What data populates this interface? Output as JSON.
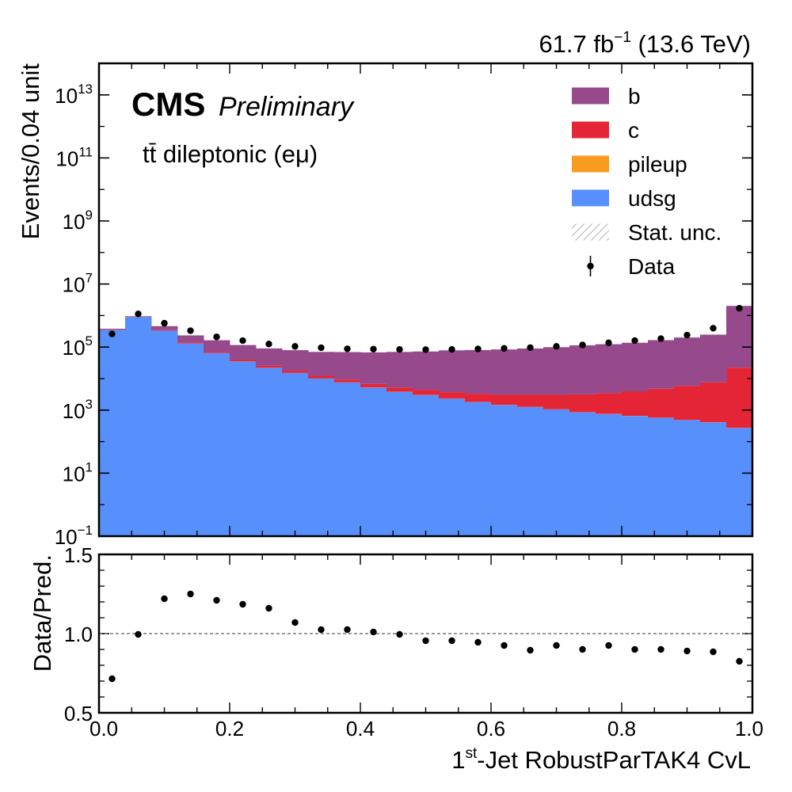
{
  "header": {
    "lumi_value": "61.7 fb",
    "lumi_sup": "−1",
    "lumi_energy": " (13.6 TeV)"
  },
  "labels": {
    "cms": "CMS",
    "preliminary": "Preliminary",
    "channel": "tt̄ dileptonic (eμ)"
  },
  "top_yaxis_label": "Events/0.04 unit",
  "bottom_yaxis_label": "Data/Pred.",
  "xaxis_label": {
    "prefix": "1",
    "sup": "st",
    "main": "-Jet RobustParTAK4 CvL"
  },
  "colors": {
    "b": "#964A8B",
    "c": "#E42536",
    "pileup": "#F89C20",
    "udsg": "#5790FC",
    "data": "#000000",
    "unc_hatch": "#9c9c9c"
  },
  "chart_data": [
    {
      "type": "bar",
      "subtype": "stacked-histogram-with-data",
      "title": "",
      "xlabel": "1st-Jet RobustParTAK4 CvL",
      "ylabel": "Events/0.04 unit",
      "yscale": "log",
      "xlim": [
        0.0,
        1.0
      ],
      "ylim_log10": [
        -1,
        14
      ],
      "ytick_exponents": [
        -1,
        1,
        3,
        5,
        7,
        9,
        11,
        13
      ],
      "ytick_labels": [
        "10",
        "10",
        "10",
        "10",
        "10",
        "10",
        "10",
        "10"
      ],
      "ytick_sups": [
        "−1",
        "1",
        "3",
        "5",
        "7",
        "9",
        "11",
        "13"
      ],
      "bin_edges": [
        0.0,
        0.04,
        0.08,
        0.12,
        0.16,
        0.2,
        0.24,
        0.28,
        0.32,
        0.36,
        0.4,
        0.44,
        0.48,
        0.52,
        0.56,
        0.6,
        0.64,
        0.68,
        0.72,
        0.76,
        0.8,
        0.84,
        0.88,
        0.92,
        0.96,
        1.0
      ],
      "legend_position": "top-right",
      "legend": [
        {
          "key": "b",
          "label": "b",
          "kind": "fill"
        },
        {
          "key": "c",
          "label": "c",
          "kind": "fill"
        },
        {
          "key": "pileup",
          "label": "pileup",
          "kind": "fill"
        },
        {
          "key": "udsg",
          "label": "udsg",
          "kind": "fill"
        },
        {
          "key": "unc",
          "label": "Stat. unc.",
          "kind": "hatch"
        },
        {
          "key": "data",
          "label": "Data",
          "kind": "marker"
        }
      ],
      "series": [
        {
          "key": "udsg",
          "name": "udsg",
          "values": [
            350000,
            900000,
            330000,
            130000,
            65000,
            35000,
            22000,
            15000,
            10000,
            7500,
            5200,
            3800,
            3000,
            2300,
            1800,
            1450,
            1250,
            1050,
            850,
            750,
            650,
            570,
            480,
            410,
            270
          ]
        },
        {
          "key": "pileup",
          "name": "pileup",
          "values": [
            500,
            1000,
            600,
            300,
            200,
            150,
            110,
            80,
            60,
            45,
            35,
            28,
            22,
            18,
            15,
            12,
            10,
            9,
            8,
            7,
            6,
            5,
            5,
            4,
            3
          ]
        },
        {
          "key": "c",
          "name": "c",
          "values": [
            10000,
            20000,
            15000,
            10000,
            6500,
            4800,
            3500,
            2700,
            2200,
            1800,
            1500,
            1400,
            1400,
            1400,
            1500,
            1600,
            1800,
            2000,
            2300,
            2700,
            3300,
            4200,
            5400,
            7200,
            22000
          ]
        },
        {
          "key": "b",
          "name": "b",
          "values": [
            20000,
            37000,
            115000,
            94000,
            93000,
            76000,
            65000,
            62000,
            58000,
            60000,
            61000,
            65000,
            68000,
            75000,
            77000,
            81000,
            87000,
            96000,
            110000,
            120000,
            133000,
            161000,
            195000,
            240000,
            2000000
          ]
        }
      ],
      "data_points": [
        {
          "x": 0.02,
          "y": 260000
        },
        {
          "x": 0.06,
          "y": 1130000
        },
        {
          "x": 0.1,
          "y": 570000
        },
        {
          "x": 0.14,
          "y": 330000
        },
        {
          "x": 0.18,
          "y": 210000
        },
        {
          "x": 0.22,
          "y": 160000
        },
        {
          "x": 0.26,
          "y": 125000
        },
        {
          "x": 0.3,
          "y": 105000
        },
        {
          "x": 0.34,
          "y": 95000
        },
        {
          "x": 0.38,
          "y": 88000
        },
        {
          "x": 0.42,
          "y": 86000
        },
        {
          "x": 0.46,
          "y": 84000
        },
        {
          "x": 0.5,
          "y": 83000
        },
        {
          "x": 0.54,
          "y": 84000
        },
        {
          "x": 0.58,
          "y": 87000
        },
        {
          "x": 0.62,
          "y": 91000
        },
        {
          "x": 0.66,
          "y": 96000
        },
        {
          "x": 0.7,
          "y": 105000
        },
        {
          "x": 0.74,
          "y": 116000
        },
        {
          "x": 0.78,
          "y": 136000
        },
        {
          "x": 0.82,
          "y": 160000
        },
        {
          "x": 0.86,
          "y": 185000
        },
        {
          "x": 0.9,
          "y": 240000
        },
        {
          "x": 0.94,
          "y": 395000
        },
        {
          "x": 0.98,
          "y": 1700000
        }
      ],
      "xtick_values": [
        0.0,
        0.2,
        0.4,
        0.6,
        0.8,
        1.0
      ],
      "grid": false
    },
    {
      "type": "scatter",
      "subtype": "ratio-panel",
      "xlabel": "1st-Jet RobustParTAK4 CvL",
      "ylabel": "Data/Pred.",
      "xlim": [
        0.0,
        1.0
      ],
      "ylim": [
        0.5,
        1.5
      ],
      "ytick_values": [
        0.5,
        1.0,
        1.5
      ],
      "ytick_labels": [
        "0.5",
        "1.0",
        "1.5"
      ],
      "xtick_values": [
        0.0,
        0.2,
        0.4,
        0.6,
        0.8,
        1.0
      ],
      "xtick_labels": [
        "0.0",
        "0.2",
        "0.4",
        "0.6",
        "0.8",
        "1.0"
      ],
      "reference_line": 1.0,
      "points": [
        {
          "x": 0.02,
          "y": 0.715
        },
        {
          "x": 0.06,
          "y": 0.995
        },
        {
          "x": 0.1,
          "y": 1.22
        },
        {
          "x": 0.14,
          "y": 1.25
        },
        {
          "x": 0.18,
          "y": 1.21
        },
        {
          "x": 0.22,
          "y": 1.185
        },
        {
          "x": 0.26,
          "y": 1.16
        },
        {
          "x": 0.3,
          "y": 1.07
        },
        {
          "x": 0.34,
          "y": 1.025
        },
        {
          "x": 0.38,
          "y": 1.025
        },
        {
          "x": 0.42,
          "y": 1.01
        },
        {
          "x": 0.46,
          "y": 0.995
        },
        {
          "x": 0.5,
          "y": 0.955
        },
        {
          "x": 0.54,
          "y": 0.955
        },
        {
          "x": 0.58,
          "y": 0.945
        },
        {
          "x": 0.62,
          "y": 0.925
        },
        {
          "x": 0.66,
          "y": 0.895
        },
        {
          "x": 0.7,
          "y": 0.925
        },
        {
          "x": 0.74,
          "y": 0.9
        },
        {
          "x": 0.78,
          "y": 0.925
        },
        {
          "x": 0.82,
          "y": 0.9
        },
        {
          "x": 0.86,
          "y": 0.9
        },
        {
          "x": 0.9,
          "y": 0.89
        },
        {
          "x": 0.94,
          "y": 0.885
        },
        {
          "x": 0.98,
          "y": 0.825
        }
      ],
      "grid": false
    }
  ]
}
